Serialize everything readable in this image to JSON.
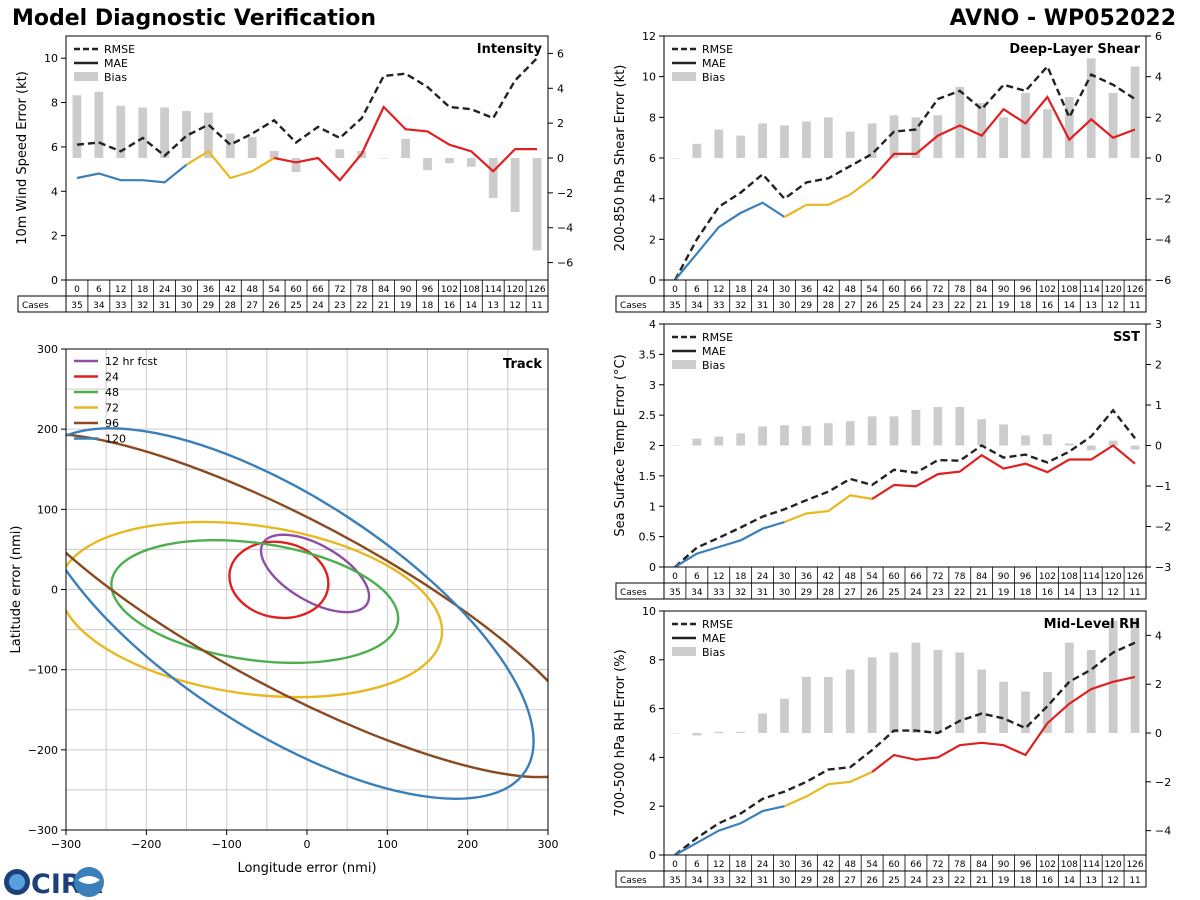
{
  "header": {
    "title_left": "Model Diagnostic Verification",
    "title_right": "AVNO - WP052022"
  },
  "legend": {
    "rmse": "RMSE",
    "mae": "MAE",
    "bias": "Bias"
  },
  "cases_label": "Cases",
  "colors": {
    "rmse": "#222222",
    "bias": "#cccccc",
    "gap": "#3a7fba",
    "y": "#e8b820",
    "r": "#e02020",
    "grid": "#cccccc"
  },
  "logo": {
    "text": "CIRA"
  },
  "chart_data": [
    {
      "id": "intensity",
      "type": "line",
      "title": "Intensity",
      "ylabel": "10m Wind Speed Error (kt)",
      "ylim": [
        0,
        11
      ],
      "yticks": [
        0,
        2,
        4,
        6,
        8,
        10
      ],
      "bias_lim": [
        -7,
        7
      ],
      "bias_ticks": [
        -6,
        -4,
        -2,
        0,
        2,
        4,
        6
      ],
      "x": [
        0,
        6,
        12,
        18,
        24,
        30,
        36,
        42,
        48,
        54,
        60,
        66,
        72,
        78,
        84,
        90,
        96,
        102,
        108,
        114,
        120,
        126
      ],
      "cases": [
        35,
        34,
        33,
        32,
        31,
        30,
        29,
        28,
        27,
        26,
        25,
        24,
        23,
        22,
        21,
        19,
        18,
        16,
        14,
        13,
        12,
        11
      ],
      "rmse": [
        6.1,
        6.2,
        5.8,
        6.4,
        5.6,
        6.5,
        7.0,
        6.1,
        6.6,
        7.2,
        6.2,
        6.9,
        6.4,
        7.3,
        9.2,
        9.3,
        8.7,
        7.8,
        7.7,
        7.3,
        9.0,
        10.0
      ],
      "mae": [
        4.6,
        4.8,
        4.5,
        4.5,
        4.4,
        5.2,
        5.8,
        4.6,
        4.9,
        5.5,
        5.3,
        5.5,
        4.5,
        5.7,
        7.8,
        6.8,
        6.7,
        6.1,
        5.8,
        4.9,
        5.9,
        5.9
      ],
      "bias": [
        3.6,
        3.8,
        3.0,
        2.9,
        2.9,
        2.7,
        2.6,
        1.4,
        1.2,
        0.4,
        -0.8,
        0.0,
        0.5,
        0.4,
        0.0,
        1.1,
        -0.7,
        -0.3,
        -0.5,
        -2.3,
        -3.1,
        -5.3
      ]
    },
    {
      "id": "shear",
      "type": "line",
      "title": "Deep-Layer Shear",
      "ylabel": "200-850 hPa Shear Error (kt)",
      "ylim": [
        0,
        12
      ],
      "yticks": [
        0,
        2,
        4,
        6,
        8,
        10,
        12
      ],
      "bias_lim": [
        -6,
        6
      ],
      "bias_ticks": [
        -6,
        -4,
        -2,
        0,
        2,
        4,
        6
      ],
      "x": [
        0,
        6,
        12,
        18,
        24,
        30,
        36,
        42,
        48,
        54,
        60,
        66,
        72,
        78,
        84,
        90,
        96,
        102,
        108,
        114,
        120,
        126
      ],
      "cases": [
        35,
        34,
        33,
        32,
        31,
        30,
        29,
        28,
        27,
        26,
        25,
        24,
        23,
        22,
        21,
        19,
        18,
        16,
        14,
        13,
        12,
        11
      ],
      "rmse": [
        0.0,
        2.0,
        3.6,
        4.3,
        5.2,
        4.0,
        4.8,
        5.0,
        5.6,
        6.2,
        7.3,
        7.4,
        8.9,
        9.3,
        8.4,
        9.6,
        9.3,
        10.5,
        8.0,
        10.1,
        9.6,
        8.9
      ],
      "mae": [
        0.0,
        1.3,
        2.6,
        3.3,
        3.8,
        3.1,
        3.7,
        3.7,
        4.2,
        5.0,
        6.2,
        6.2,
        7.1,
        7.6,
        7.1,
        8.4,
        7.7,
        9.0,
        6.9,
        7.9,
        7.0,
        7.4
      ],
      "bias": [
        0.0,
        0.7,
        1.4,
        1.1,
        1.7,
        1.6,
        1.8,
        2.0,
        1.3,
        1.7,
        2.1,
        2.0,
        2.1,
        3.5,
        2.7,
        2.0,
        3.2,
        2.4,
        3.0,
        4.9,
        3.2,
        4.5
      ]
    },
    {
      "id": "sst",
      "type": "line",
      "title": "SST",
      "ylabel": "Sea Surface Temp Error (°C)",
      "ylim": [
        0,
        4
      ],
      "yticks": [
        0.0,
        0.5,
        1.0,
        1.5,
        2.0,
        2.5,
        3.0,
        3.5,
        4.0
      ],
      "bias_lim": [
        -3,
        3
      ],
      "bias_ticks": [
        -3,
        -2,
        -1,
        0,
        1,
        2,
        3
      ],
      "x": [
        0,
        6,
        12,
        18,
        24,
        30,
        36,
        42,
        48,
        54,
        60,
        66,
        72,
        78,
        84,
        90,
        96,
        102,
        108,
        114,
        120,
        126
      ],
      "cases": [
        35,
        34,
        33,
        32,
        31,
        30,
        29,
        28,
        27,
        26,
        25,
        24,
        23,
        22,
        21,
        19,
        18,
        16,
        14,
        13,
        12,
        11
      ],
      "rmse": [
        0.0,
        0.32,
        0.48,
        0.65,
        0.83,
        0.95,
        1.1,
        1.24,
        1.45,
        1.35,
        1.6,
        1.55,
        1.76,
        1.75,
        2.0,
        1.8,
        1.85,
        1.72,
        1.9,
        2.15,
        2.58,
        2.12
      ],
      "mae": [
        0.0,
        0.22,
        0.33,
        0.44,
        0.63,
        0.74,
        0.88,
        0.92,
        1.18,
        1.12,
        1.35,
        1.33,
        1.53,
        1.57,
        1.84,
        1.62,
        1.7,
        1.56,
        1.77,
        1.77,
        2.0,
        1.7
      ],
      "bias": [
        0.0,
        0.17,
        0.22,
        0.3,
        0.47,
        0.5,
        0.48,
        0.55,
        0.6,
        0.72,
        0.72,
        0.88,
        0.95,
        0.95,
        0.65,
        0.52,
        0.25,
        0.28,
        0.05,
        -0.12,
        0.12,
        -0.1
      ]
    },
    {
      "id": "rh",
      "type": "line",
      "title": "Mid-Level RH",
      "ylabel": "700-500 hPa RH Error (%)",
      "ylim": [
        0,
        10
      ],
      "yticks": [
        0,
        2,
        4,
        6,
        8,
        10
      ],
      "bias_lim": [
        -5,
        5
      ],
      "bias_ticks": [
        -4,
        -2,
        0,
        2,
        4
      ],
      "x": [
        0,
        6,
        12,
        18,
        24,
        30,
        36,
        42,
        48,
        54,
        60,
        66,
        72,
        78,
        84,
        90,
        96,
        102,
        108,
        114,
        120,
        126
      ],
      "cases": [
        35,
        34,
        33,
        32,
        31,
        30,
        29,
        28,
        27,
        26,
        25,
        24,
        23,
        22,
        21,
        19,
        18,
        16,
        14,
        13,
        12,
        11
      ],
      "rmse": [
        0.0,
        0.7,
        1.3,
        1.7,
        2.3,
        2.6,
        3.0,
        3.5,
        3.6,
        4.3,
        5.1,
        5.1,
        5.0,
        5.5,
        5.8,
        5.6,
        5.2,
        6.1,
        7.1,
        7.6,
        8.3,
        8.7
      ],
      "mae": [
        0.0,
        0.5,
        1.0,
        1.3,
        1.8,
        2.0,
        2.4,
        2.9,
        3.0,
        3.4,
        4.1,
        3.9,
        4.0,
        4.5,
        4.6,
        4.5,
        4.1,
        5.4,
        6.2,
        6.8,
        7.1,
        7.3
      ],
      "bias": [
        0.0,
        -0.1,
        0.05,
        0.05,
        0.8,
        1.4,
        2.3,
        2.3,
        2.6,
        3.1,
        3.3,
        3.7,
        3.4,
        3.3,
        2.6,
        2.1,
        1.7,
        2.5,
        3.7,
        3.4,
        4.6,
        4.7
      ]
    },
    {
      "id": "track",
      "type": "ellipse",
      "title": "Track",
      "xlabel": "Longitude error (nmi)",
      "ylabel": "Latitude error (nmi)",
      "xlim": [
        -300,
        300
      ],
      "ylim": [
        -300,
        300
      ],
      "xticks": [
        -300,
        -200,
        -100,
        0,
        100,
        200,
        300
      ],
      "yticks": [
        -300,
        -200,
        -100,
        0,
        100,
        200,
        300
      ],
      "series": [
        {
          "name": "12 hr fcst",
          "color": "#8e4fa3",
          "cx": 10,
          "cy": 20,
          "a": 75,
          "b": 35,
          "angle": 30
        },
        {
          "name": "24",
          "color": "#e02020",
          "cx": -35,
          "cy": 12,
          "a": 62,
          "b": 47,
          "angle": 10
        },
        {
          "name": "48",
          "color": "#4caf50",
          "cx": -65,
          "cy": -15,
          "a": 180,
          "b": 73,
          "angle": 8
        },
        {
          "name": "72",
          "color": "#e8b820",
          "cx": -70,
          "cy": -25,
          "a": 240,
          "b": 105,
          "angle": 8
        },
        {
          "name": "96",
          "color": "#8a4a20",
          "cx": -15,
          "cy": -20,
          "a": 410,
          "b": 105,
          "angle": 28
        },
        {
          "name": "120",
          "color": "#3a7fba",
          "cx": -30,
          "cy": -30,
          "a": 360,
          "b": 145,
          "angle": 33
        }
      ]
    }
  ]
}
